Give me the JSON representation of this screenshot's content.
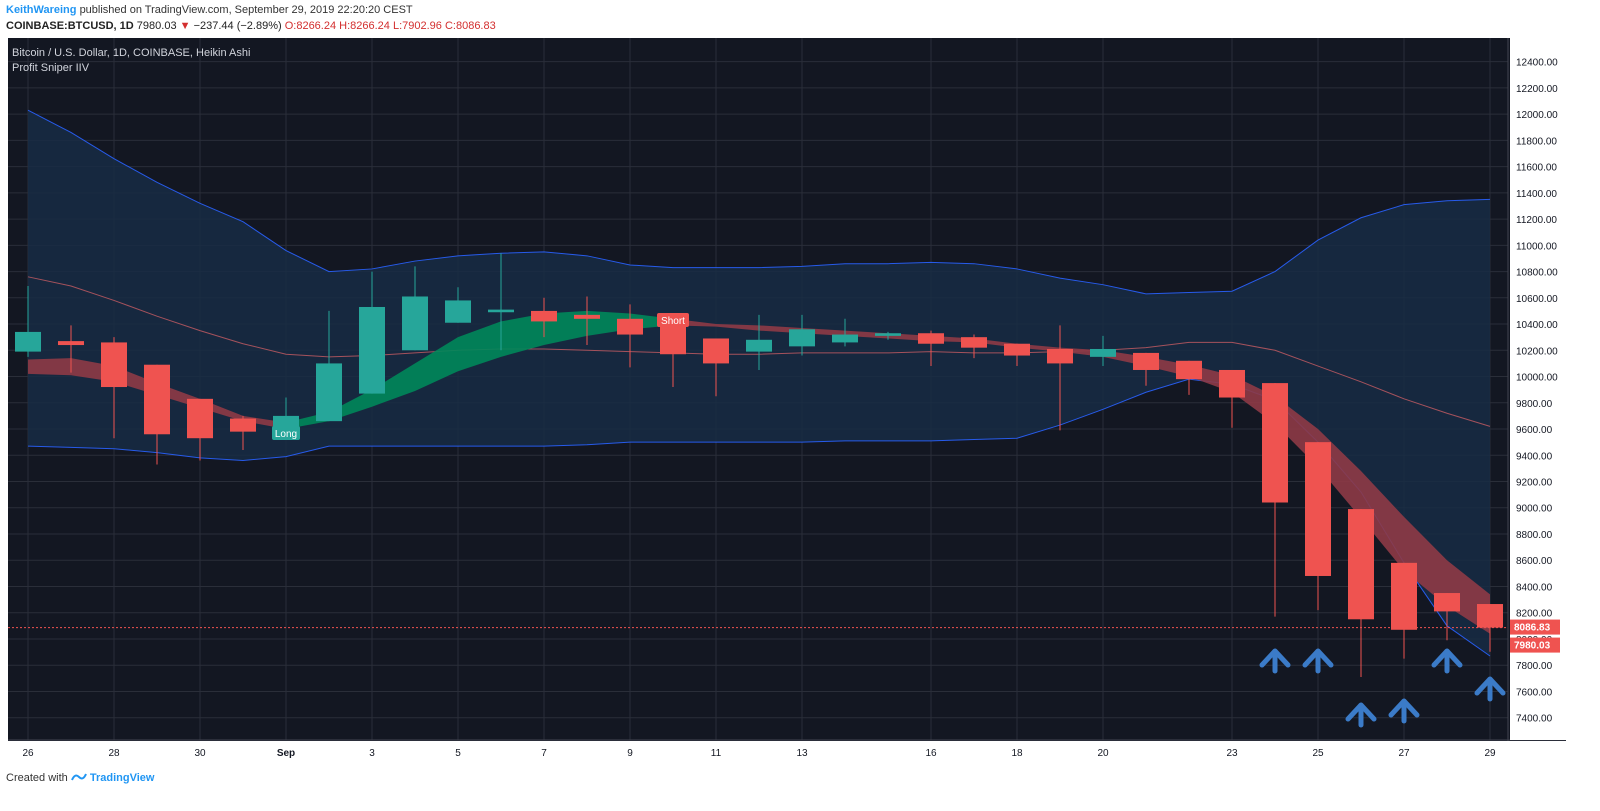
{
  "header": {
    "author": "KeithWareing",
    "published": "published on TradingView.com, September 29, 2019 22:20:20 CEST",
    "symbol": "COINBASE:BTCUSD, 1D",
    "last": "7980.03",
    "change_arrow": "▼",
    "change": "−237.44 (−2.89%)",
    "ohlc": "O:8266.24 H:8266.24 L:7902.96 C:8086.83"
  },
  "chart_title": "Bitcoin / U.S. Dollar, 1D, COINBASE, Heikin Ashi",
  "indicator_name": "Profit Sniper IIV",
  "footer": {
    "created_with": "Created with",
    "brand": "TradingView"
  },
  "colors": {
    "background": "#131722",
    "grid": "#2a2e39",
    "up": "#26a69a",
    "down": "#ef5350",
    "band_fill": "#172b44",
    "band_line": "#2962ff",
    "basis_line": "#a5525c",
    "ribbon_up": "#00875a",
    "ribbon_down": "#8e3a46",
    "arrow": "#3b7bc8",
    "axis_text": "#d1d4dc"
  },
  "chart_data": {
    "type": "candlestick",
    "title": "Bitcoin / U.S. Dollar, 1D, COINBASE, Heikin Ashi",
    "y_ticks": [
      7400,
      7600,
      7800,
      8000,
      8200,
      8400,
      8600,
      8800,
      9000,
      9200,
      9400,
      9600,
      9800,
      10000,
      10200,
      10400,
      10600,
      10800,
      11000,
      11200,
      11400,
      11600,
      11800,
      12000,
      12200,
      12400
    ],
    "y_tick_labels": [
      "7400.00",
      "7600.00",
      "7800.00",
      "8000.00",
      "8200.00",
      "8400.00",
      "8600.00",
      "8800.00",
      "9000.00",
      "9200.00",
      "9400.00",
      "9600.00",
      "9800.00",
      "10000.00",
      "10200.00",
      "10400.00",
      "10600.00",
      "10800.00",
      "11000.00",
      "11200.00",
      "11400.00",
      "11600.00",
      "11800.00",
      "12000.00",
      "12200.00",
      "12400.00"
    ],
    "ylim": [
      7230,
      12580
    ],
    "x_tick_labels": [
      {
        "i": 0,
        "label": "26"
      },
      {
        "i": 2,
        "label": "28"
      },
      {
        "i": 4,
        "label": "30"
      },
      {
        "i": 6,
        "label": "Sep"
      },
      {
        "i": 8,
        "label": "3"
      },
      {
        "i": 10,
        "label": "5"
      },
      {
        "i": 12,
        "label": "7"
      },
      {
        "i": 14,
        "label": "9"
      },
      {
        "i": 16,
        "label": "11"
      },
      {
        "i": 18,
        "label": "13"
      },
      {
        "i": 21,
        "label": "16"
      },
      {
        "i": 23,
        "label": "18"
      },
      {
        "i": 25,
        "label": "20"
      },
      {
        "i": 28,
        "label": "23"
      },
      {
        "i": 30,
        "label": "25"
      },
      {
        "i": 32,
        "label": "27"
      },
      {
        "i": 34,
        "label": "29"
      }
    ],
    "x_index": [
      0,
      1,
      2,
      3,
      4,
      5,
      6,
      7,
      8,
      9,
      10,
      11,
      12,
      13,
      14,
      15,
      16,
      17,
      18,
      19,
      20,
      21,
      22,
      23,
      24,
      25,
      26,
      27,
      28,
      29,
      30,
      31,
      32,
      33,
      34
    ],
    "candles": [
      {
        "o": 10190,
        "h": 10690,
        "l": 10150,
        "c": 10340
      },
      {
        "o": 10270,
        "h": 10390,
        "l": 10030,
        "c": 10240
      },
      {
        "o": 10260,
        "h": 10300,
        "l": 9530,
        "c": 9920
      },
      {
        "o": 10090,
        "h": 10090,
        "l": 9330,
        "c": 9560
      },
      {
        "o": 9830,
        "h": 9830,
        "l": 9360,
        "c": 9530
      },
      {
        "o": 9680,
        "h": 9700,
        "l": 9440,
        "c": 9580
      },
      {
        "o": 9600,
        "h": 9840,
        "l": 9600,
        "c": 9700
      },
      {
        "o": 9660,
        "h": 10500,
        "l": 9660,
        "c": 10100
      },
      {
        "o": 9870,
        "h": 10800,
        "l": 9870,
        "c": 10530
      },
      {
        "o": 10200,
        "h": 10840,
        "l": 10200,
        "c": 10610
      },
      {
        "o": 10410,
        "h": 10680,
        "l": 10410,
        "c": 10580
      },
      {
        "o": 10490,
        "h": 10940,
        "l": 10200,
        "c": 10510
      },
      {
        "o": 10500,
        "h": 10600,
        "l": 10300,
        "c": 10420
      },
      {
        "o": 10470,
        "h": 10610,
        "l": 10240,
        "c": 10440
      },
      {
        "o": 10440,
        "h": 10550,
        "l": 10070,
        "c": 10320
      },
      {
        "o": 10380,
        "h": 10400,
        "l": 9920,
        "c": 10170
      },
      {
        "o": 10290,
        "h": 10290,
        "l": 9850,
        "c": 10100
      },
      {
        "o": 10190,
        "h": 10470,
        "l": 10050,
        "c": 10280
      },
      {
        "o": 10230,
        "h": 10470,
        "l": 10160,
        "c": 10360
      },
      {
        "o": 10260,
        "h": 10440,
        "l": 10230,
        "c": 10320
      },
      {
        "o": 10310,
        "h": 10340,
        "l": 10280,
        "c": 10330
      },
      {
        "o": 10330,
        "h": 10350,
        "l": 10080,
        "c": 10250
      },
      {
        "o": 10300,
        "h": 10320,
        "l": 10140,
        "c": 10220
      },
      {
        "o": 10250,
        "h": 10250,
        "l": 10080,
        "c": 10160
      },
      {
        "o": 10210,
        "h": 10390,
        "l": 9590,
        "c": 10100
      },
      {
        "o": 10150,
        "h": 10310,
        "l": 10080,
        "c": 10210
      },
      {
        "o": 10180,
        "h": 10180,
        "l": 9930,
        "c": 10050
      },
      {
        "o": 10120,
        "h": 10120,
        "l": 9860,
        "c": 9980
      },
      {
        "o": 10050,
        "h": 10050,
        "l": 9610,
        "c": 9840
      },
      {
        "o": 9950,
        "h": 9950,
        "l": 8170,
        "c": 9040
      },
      {
        "o": 9500,
        "h": 9500,
        "l": 8220,
        "c": 8480
      },
      {
        "o": 8990,
        "h": 8990,
        "l": 7710,
        "c": 8150
      },
      {
        "o": 8580,
        "h": 8580,
        "l": 7850,
        "c": 8070
      },
      {
        "o": 8350,
        "h": 8350,
        "l": 7990,
        "c": 8210
      },
      {
        "o": 8266.24,
        "h": 8266.24,
        "l": 7902.96,
        "c": 8086.83
      }
    ],
    "upper_band": [
      12030,
      11860,
      11660,
      11480,
      11320,
      11180,
      10960,
      10800,
      10820,
      10880,
      10920,
      10940,
      10950,
      10920,
      10850,
      10830,
      10830,
      10830,
      10840,
      10860,
      10860,
      10870,
      10860,
      10820,
      10750,
      10700,
      10630,
      10640,
      10650,
      10800,
      11040,
      11210,
      11310,
      11340,
      11350
    ],
    "lower_band": [
      9470,
      9460,
      9450,
      9420,
      9380,
      9360,
      9390,
      9470,
      9470,
      9470,
      9470,
      9470,
      9470,
      9480,
      9500,
      9500,
      9500,
      9500,
      9500,
      9510,
      9510,
      9510,
      9520,
      9530,
      9630,
      9750,
      9880,
      9980,
      9940,
      9820,
      9500,
      9120,
      8580,
      8100,
      7870
    ],
    "basis": [
      10760,
      10690,
      10580,
      10460,
      10350,
      10250,
      10170,
      10150,
      10160,
      10180,
      10200,
      10210,
      10210,
      10200,
      10190,
      10180,
      10170,
      10170,
      10180,
      10180,
      10180,
      10190,
      10180,
      10180,
      10190,
      10200,
      10220,
      10260,
      10260,
      10200,
      10080,
      9960,
      9830,
      9720,
      9620
    ],
    "ribbon_a": [
      10130,
      10140,
      10080,
      9950,
      9830,
      9700,
      9650,
      9730,
      9900,
      10100,
      10300,
      10420,
      10480,
      10500,
      10480,
      10440,
      10400,
      10390,
      10370,
      10350,
      10330,
      10310,
      10290,
      10250,
      10220,
      10200,
      10150,
      10090,
      10010,
      9850,
      9600,
      9280,
      8930,
      8600,
      8340
    ],
    "ribbon_b": [
      10020,
      10010,
      9960,
      9860,
      9760,
      9660,
      9600,
      9660,
      9770,
      9890,
      10040,
      10150,
      10240,
      10310,
      10360,
      10390,
      10380,
      10350,
      10330,
      10310,
      10290,
      10270,
      10260,
      10220,
      10190,
      10150,
      10080,
      10000,
      9880,
      9640,
      9310,
      8920,
      8520,
      8250,
      8040
    ],
    "signals": [
      {
        "i": 6,
        "label": "Long",
        "type": "long"
      },
      {
        "i": 15,
        "label": "Short",
        "type": "short"
      }
    ],
    "annotation_arrows": [
      29,
      30,
      31,
      32,
      33,
      34
    ],
    "last_price_line": 8086.83,
    "price_labels": [
      {
        "value": 8086.83,
        "label": "8086.83"
      },
      {
        "value": 7980.03,
        "label": "7980.03"
      }
    ]
  }
}
